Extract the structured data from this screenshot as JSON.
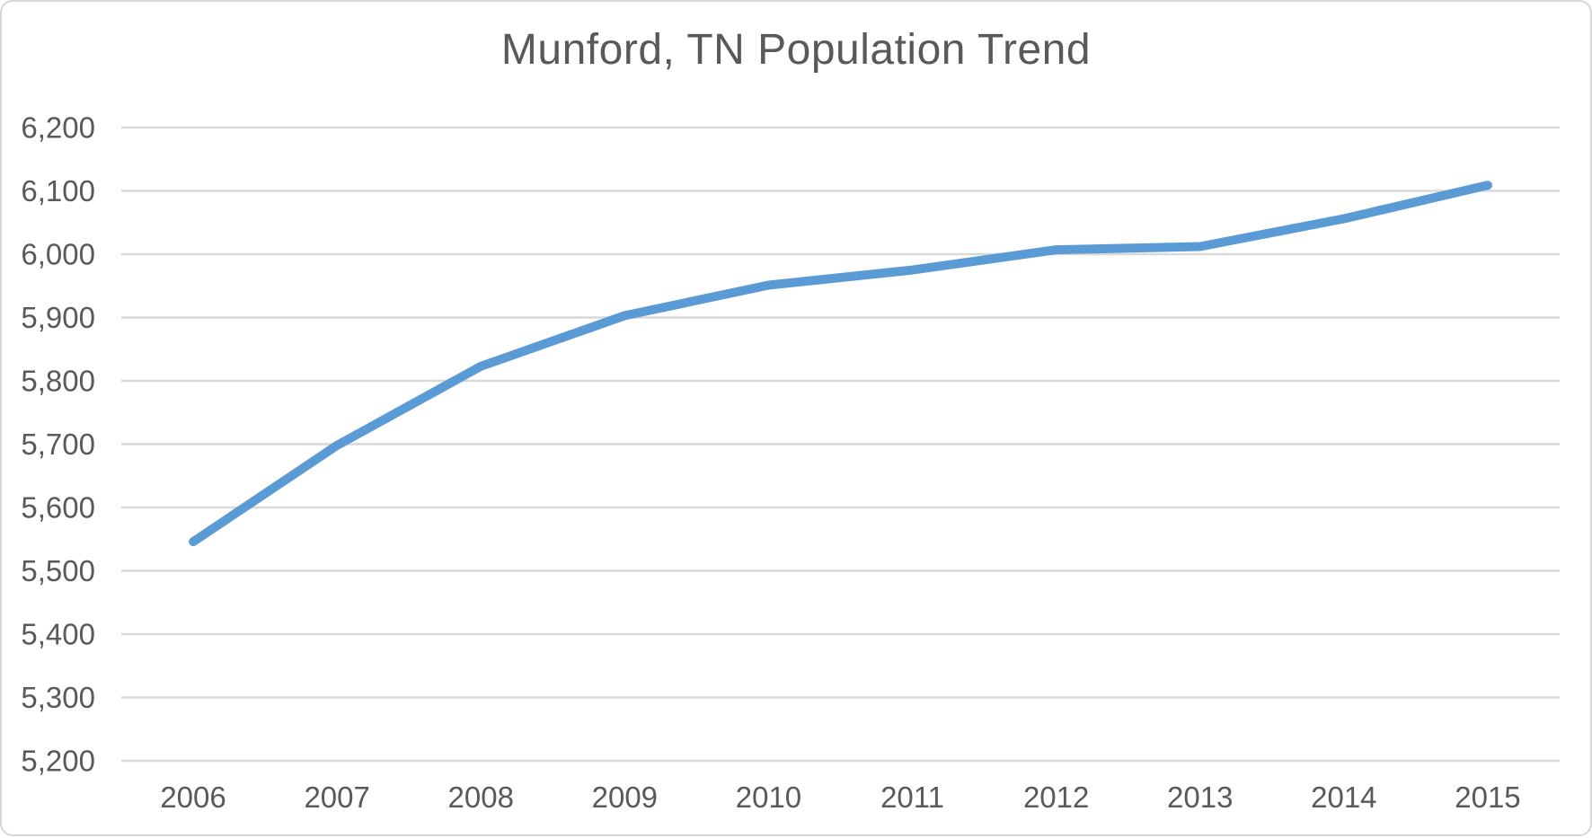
{
  "chart_data": {
    "type": "line",
    "title": "Munford, TN Population Trend",
    "series_name": "Population",
    "x": [
      2006,
      2007,
      2008,
      2009,
      2010,
      2011,
      2012,
      2013,
      2014,
      2015
    ],
    "values": [
      5546,
      5698,
      5823,
      5903,
      5951,
      5975,
      6007,
      6012,
      6056,
      6109
    ],
    "xtick_labels": [
      "2006",
      "2007",
      "2008",
      "2009",
      "2010",
      "2011",
      "2012",
      "2013",
      "2014",
      "2015"
    ],
    "ytick_values": [
      5200,
      5300,
      5400,
      5500,
      5600,
      5700,
      5800,
      5900,
      6000,
      6100,
      6200
    ],
    "ytick_labels": [
      "5,200",
      "5,300",
      "5,400",
      "5,500",
      "5,600",
      "5,700",
      "5,800",
      "5,900",
      "6,000",
      "6,100",
      "6,200"
    ],
    "ylim": [
      5200,
      6200
    ],
    "xlabel": "",
    "ylabel": "",
    "grid": "horizontal",
    "legend_position": "none",
    "colors": {
      "line": "#5B9BD5",
      "gridline": "#D9D9D9",
      "text": "#595959",
      "frame_border": "#D7D7D7",
      "background": "#FFFFFF"
    }
  }
}
